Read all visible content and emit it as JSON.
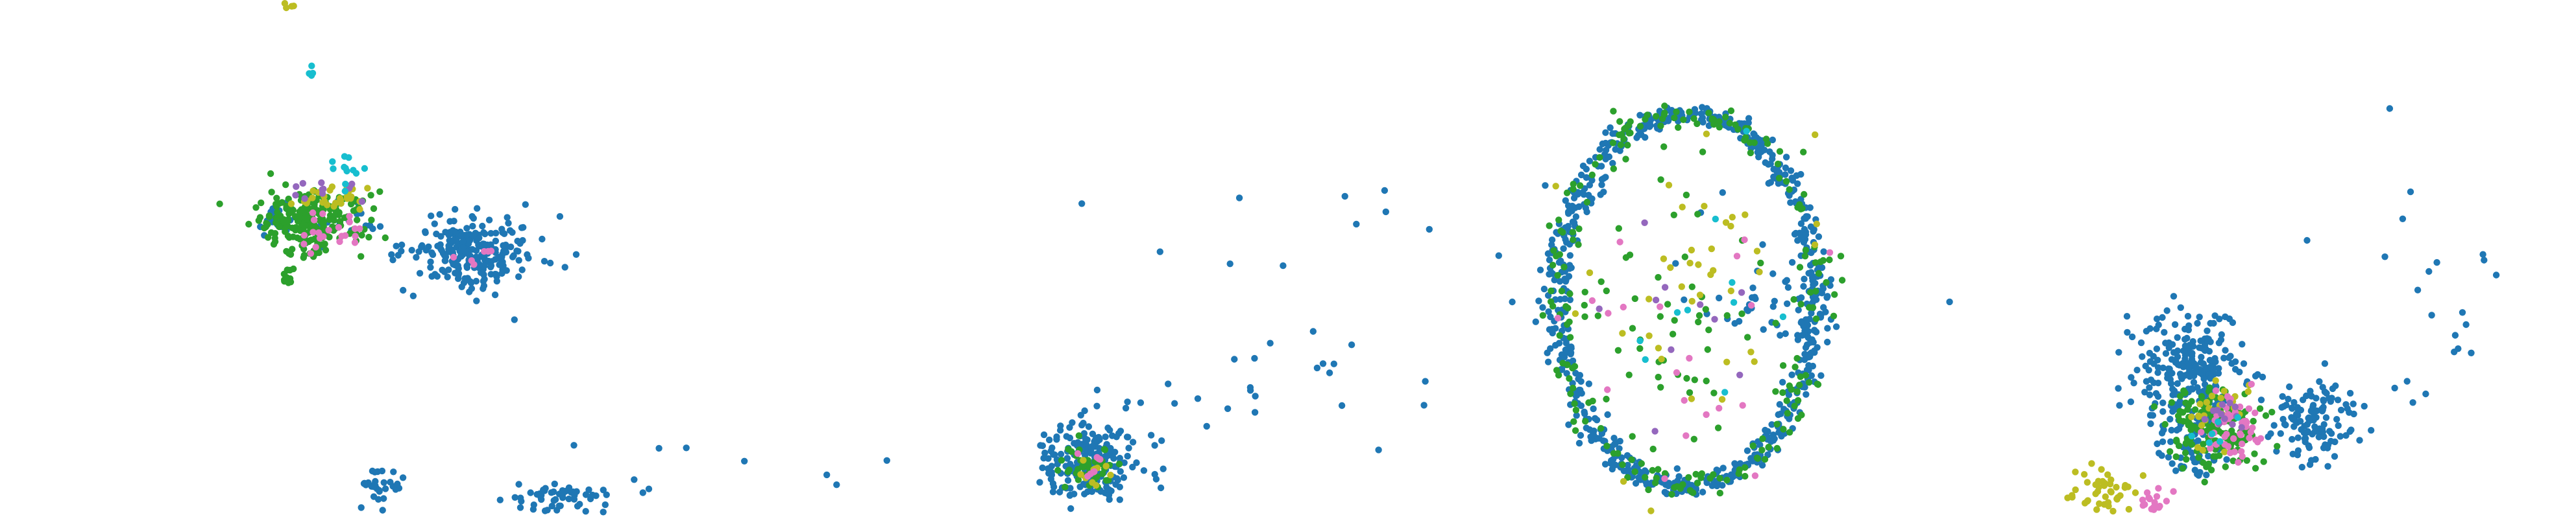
{
  "chart_data": [
    {
      "type": "scatter",
      "title": "",
      "xlabel": "",
      "ylabel": "",
      "axes_visible": false,
      "grid": false,
      "legend": "none",
      "xlim": [
        0,
        1
      ],
      "ylim": [
        0,
        1
      ],
      "series": [
        {
          "color": "#1f77b4",
          "clusters": [
            {
              "cx": 0.46,
              "cy": 0.51,
              "rx": 0.06,
              "ry": 0.07,
              "n": 240
            },
            {
              "cx": 0.27,
              "cy": 0.59,
              "rx": 0.01,
              "ry": 0.03,
              "n": 14
            },
            {
              "cx": 0.33,
              "cy": 0.56,
              "rx": 0.06,
              "ry": 0.05,
              "n": 22
            },
            {
              "cx": 0.37,
              "cy": 0.06,
              "rx": 0.02,
              "ry": 0.035,
              "n": 30
            },
            {
              "cx": 0.54,
              "cy": 0.04,
              "rx": 0.05,
              "ry": 0.025,
              "n": 55
            },
            {
              "cx": 0.69,
              "cy": 0.09,
              "rx": 0.2,
              "ry": 0.06,
              "n": 9
            }
          ]
        },
        {
          "color": "#2ca02c",
          "clusters": [
            {
              "cx": 0.3,
              "cy": 0.57,
              "rx": 0.055,
              "ry": 0.06,
              "n": 230
            },
            {
              "cx": 0.28,
              "cy": 0.47,
              "rx": 0.01,
              "ry": 0.02,
              "n": 10
            }
          ]
        },
        {
          "color": "#bcbd22",
          "clusters": [
            {
              "cx": 0.32,
              "cy": 0.62,
              "rx": 0.04,
              "ry": 0.04,
              "n": 30
            },
            {
              "cx": 0.28,
              "cy": 0.99,
              "rx": 0.01,
              "ry": 0.008,
              "n": 5
            }
          ]
        },
        {
          "color": "#e377c2",
          "clusters": [
            {
              "cx": 0.33,
              "cy": 0.55,
              "rx": 0.035,
              "ry": 0.04,
              "n": 22
            },
            {
              "cx": 0.46,
              "cy": 0.5,
              "rx": 0.02,
              "ry": 0.02,
              "n": 6
            }
          ]
        },
        {
          "color": "#9467bd",
          "clusters": [
            {
              "cx": 0.31,
              "cy": 0.63,
              "rx": 0.035,
              "ry": 0.03,
              "n": 12
            }
          ]
        },
        {
          "color": "#17becf",
          "clusters": [
            {
              "cx": 0.34,
              "cy": 0.67,
              "rx": 0.02,
              "ry": 0.03,
              "n": 12
            },
            {
              "cx": 0.3,
              "cy": 0.86,
              "rx": 0.006,
              "ry": 0.01,
              "n": 4
            }
          ]
        }
      ]
    },
    {
      "type": "scatter",
      "title": "",
      "xlabel": "",
      "ylabel": "",
      "axes_visible": false,
      "grid": false,
      "legend": "none",
      "xlim": [
        0,
        1
      ],
      "ylim": [
        0,
        1
      ],
      "series": [
        {
          "color": "#1f77b4",
          "clusters": [
            {
              "cx": 0.06,
              "cy": 0.11,
              "rx": 0.05,
              "ry": 0.08,
              "n": 230
            },
            {
              "cx": 0.2,
              "cy": 0.25,
              "rx": 0.15,
              "ry": 0.12,
              "n": 26
            },
            {
              "cx": 0.45,
              "cy": 0.5,
              "rx": 0.3,
              "ry": 0.25,
              "n": 22
            },
            {
              "cx": 0.72,
              "cy": 0.42,
              "rx": 0.07,
              "ry": 0.1,
              "n": 40
            }
          ],
          "ellipse": {
            "cx": 0.64,
            "cy": 0.42,
            "rx": 0.125,
            "ry": 0.36,
            "n": 700,
            "jitter": 0.008
          }
        },
        {
          "color": "#2ca02c",
          "clusters": [
            {
              "cx": 0.06,
              "cy": 0.1,
              "rx": 0.03,
              "ry": 0.04,
              "n": 40
            },
            {
              "cx": 0.64,
              "cy": 0.42,
              "rx": 0.1,
              "ry": 0.3,
              "n": 60
            }
          ],
          "ellipse": {
            "cx": 0.64,
            "cy": 0.42,
            "rx": 0.125,
            "ry": 0.36,
            "n": 200,
            "jitter": 0.01
          }
        },
        {
          "color": "#bcbd22",
          "clusters": [
            {
              "cx": 0.64,
              "cy": 0.42,
              "rx": 0.1,
              "ry": 0.3,
              "n": 40
            },
            {
              "cx": 0.06,
              "cy": 0.08,
              "rx": 0.02,
              "ry": 0.03,
              "n": 10
            }
          ]
        },
        {
          "color": "#e377c2",
          "clusters": [
            {
              "cx": 0.64,
              "cy": 0.35,
              "rx": 0.1,
              "ry": 0.25,
              "n": 20
            },
            {
              "cx": 0.06,
              "cy": 0.1,
              "rx": 0.02,
              "ry": 0.03,
              "n": 8
            }
          ]
        },
        {
          "color": "#9467bd",
          "clusters": [
            {
              "cx": 0.64,
              "cy": 0.4,
              "rx": 0.1,
              "ry": 0.28,
              "n": 10
            }
          ]
        },
        {
          "color": "#17becf",
          "clusters": [
            {
              "cx": 0.64,
              "cy": 0.4,
              "rx": 0.1,
              "ry": 0.28,
              "n": 10
            }
          ]
        }
      ]
    },
    {
      "type": "scatter",
      "title": "",
      "xlabel": "",
      "ylabel": "",
      "axes_visible": false,
      "grid": false,
      "legend": "none",
      "xlim": [
        0,
        1
      ],
      "ylim": [
        0,
        1
      ],
      "series": [
        {
          "color": "#1f77b4",
          "clusters": [
            {
              "cx": 0.26,
              "cy": 0.27,
              "rx": 0.11,
              "ry": 0.12,
              "n": 260
            },
            {
              "cx": 0.5,
              "cy": 0.19,
              "rx": 0.075,
              "ry": 0.08,
              "n": 120
            },
            {
              "cx": 0.26,
              "cy": 0.12,
              "rx": 0.06,
              "ry": 0.07,
              "n": 40
            },
            {
              "cx": 0.7,
              "cy": 0.45,
              "rx": 0.28,
              "ry": 0.3,
              "n": 24
            }
          ]
        },
        {
          "color": "#2ca02c",
          "clusters": [
            {
              "cx": 0.3,
              "cy": 0.17,
              "rx": 0.085,
              "ry": 0.08,
              "n": 160
            }
          ]
        },
        {
          "color": "#bcbd22",
          "clusters": [
            {
              "cx": 0.09,
              "cy": 0.05,
              "rx": 0.06,
              "ry": 0.045,
              "n": 50
            },
            {
              "cx": 0.31,
              "cy": 0.19,
              "rx": 0.06,
              "ry": 0.06,
              "n": 25
            }
          ]
        },
        {
          "color": "#e377c2",
          "clusters": [
            {
              "cx": 0.34,
              "cy": 0.18,
              "rx": 0.05,
              "ry": 0.07,
              "n": 50
            },
            {
              "cx": 0.19,
              "cy": 0.03,
              "rx": 0.03,
              "ry": 0.025,
              "n": 20
            }
          ]
        },
        {
          "color": "#9467bd",
          "clusters": [
            {
              "cx": 0.32,
              "cy": 0.2,
              "rx": 0.04,
              "ry": 0.04,
              "n": 12
            }
          ]
        },
        {
          "color": "#17becf",
          "clusters": [
            {
              "cx": 0.3,
              "cy": 0.16,
              "rx": 0.04,
              "ry": 0.04,
              "n": 6
            }
          ]
        }
      ]
    }
  ]
}
